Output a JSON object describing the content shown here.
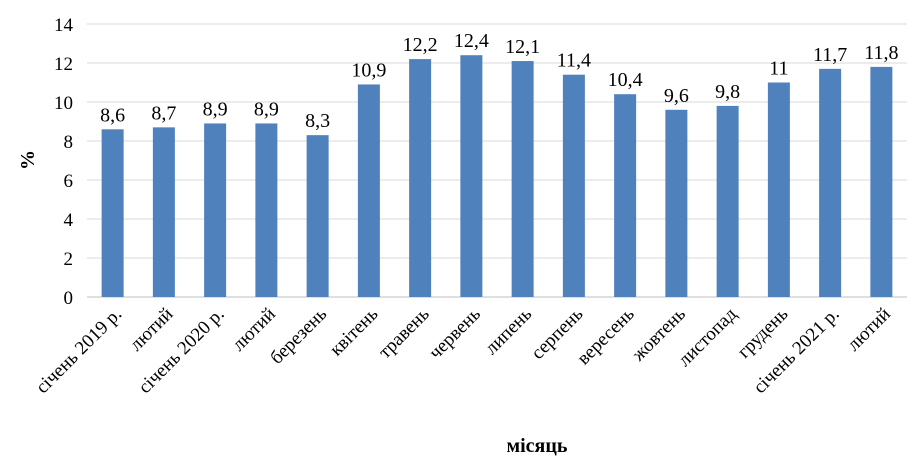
{
  "chart_data": {
    "type": "bar",
    "categories": [
      "січень 2019 р.",
      "лютий",
      "січень 2020 р.",
      "лютий",
      "березень",
      "квітень",
      "травень",
      "червень",
      "липень",
      "серпень",
      "вересень",
      "жовтень",
      "листопад",
      "грудень",
      "січень 2021 р.",
      "лютий"
    ],
    "values": [
      8.6,
      8.7,
      8.9,
      8.9,
      8.3,
      10.9,
      12.2,
      12.4,
      12.1,
      11.4,
      10.4,
      9.6,
      9.8,
      11,
      11.7,
      11.8
    ],
    "data_labels": [
      "8,6",
      "8,7",
      "8,9",
      "8,9",
      "8,3",
      "10,9",
      "12,2",
      "12,4",
      "12,1",
      "11,4",
      "10,4",
      "9,6",
      "9,8",
      "11",
      "11,7",
      "11,8"
    ],
    "title": "",
    "xlabel": "місяць",
    "ylabel": "%",
    "ylim": [
      0,
      14
    ],
    "yticks": [
      0,
      2,
      4,
      6,
      8,
      10,
      12,
      14
    ],
    "grid": true,
    "legend": "none",
    "bar_color": "#4f81bd"
  }
}
